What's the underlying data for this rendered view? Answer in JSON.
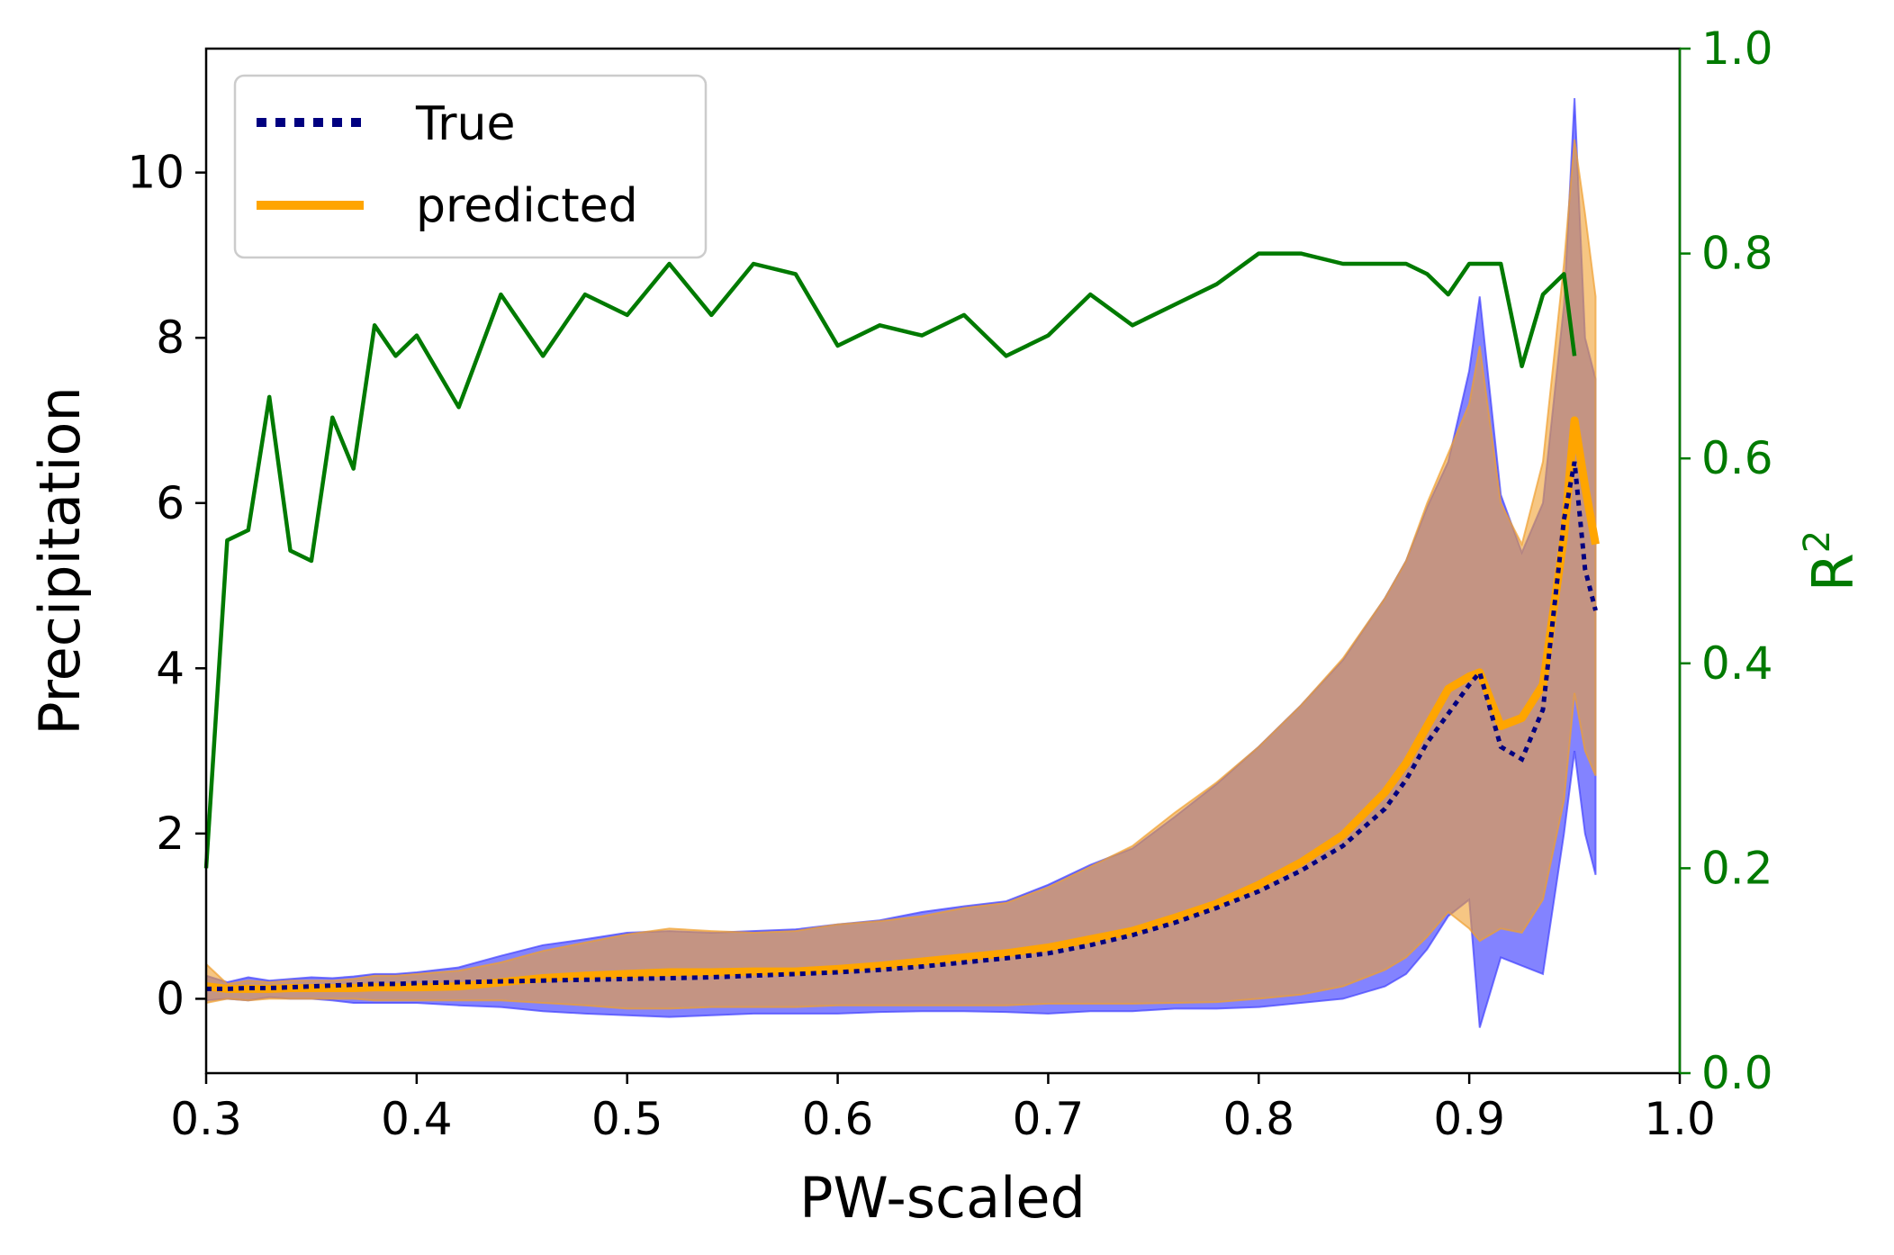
{
  "chart_data": {
    "type": "line",
    "xlabel": "PW-scaled",
    "ylabel": "Precipitation",
    "y2label": "R",
    "y2label_sup": "2",
    "xlim": [
      0.3,
      1.0
    ],
    "ylim": [
      -0.9,
      11.5
    ],
    "y2lim": [
      0.0,
      1.0
    ],
    "xticks": [
      "0.3",
      "0.4",
      "0.5",
      "0.6",
      "0.7",
      "0.8",
      "0.9",
      "1.0"
    ],
    "yticks": [
      "0",
      "2",
      "4",
      "6",
      "8",
      "10"
    ],
    "y2ticks": [
      "0.0",
      "0.2",
      "0.4",
      "0.6",
      "0.8",
      "1.0"
    ],
    "legend_position": "top-left",
    "colors": {
      "true": "#000080",
      "predicted": "#ffa500",
      "true_band": "#4040ff",
      "predicted_band": "#f0a030",
      "r2": "#007a00"
    },
    "series": [
      {
        "name": "True",
        "style": "dotted",
        "x": [
          0.3,
          0.31,
          0.32,
          0.33,
          0.34,
          0.35,
          0.36,
          0.37,
          0.38,
          0.39,
          0.4,
          0.42,
          0.44,
          0.46,
          0.48,
          0.5,
          0.52,
          0.54,
          0.56,
          0.58,
          0.6,
          0.62,
          0.64,
          0.66,
          0.68,
          0.7,
          0.72,
          0.74,
          0.76,
          0.78,
          0.8,
          0.82,
          0.84,
          0.86,
          0.87,
          0.88,
          0.89,
          0.9,
          0.905,
          0.915,
          0.925,
          0.935,
          0.945,
          0.95,
          0.955,
          0.96
        ],
        "y": [
          0.12,
          0.12,
          0.13,
          0.13,
          0.14,
          0.15,
          0.16,
          0.17,
          0.18,
          0.18,
          0.19,
          0.2,
          0.21,
          0.22,
          0.23,
          0.24,
          0.25,
          0.26,
          0.28,
          0.3,
          0.32,
          0.35,
          0.39,
          0.44,
          0.49,
          0.55,
          0.65,
          0.77,
          0.92,
          1.1,
          1.3,
          1.55,
          1.85,
          2.3,
          2.65,
          3.1,
          3.45,
          3.8,
          3.95,
          3.05,
          2.9,
          3.5,
          5.8,
          6.5,
          5.2,
          4.7
        ]
      },
      {
        "name": "predicted",
        "style": "solid",
        "x": [
          0.3,
          0.31,
          0.32,
          0.33,
          0.34,
          0.35,
          0.36,
          0.37,
          0.38,
          0.39,
          0.4,
          0.42,
          0.44,
          0.46,
          0.48,
          0.5,
          0.52,
          0.54,
          0.56,
          0.58,
          0.6,
          0.62,
          0.64,
          0.66,
          0.68,
          0.7,
          0.72,
          0.74,
          0.76,
          0.78,
          0.8,
          0.82,
          0.84,
          0.86,
          0.87,
          0.88,
          0.89,
          0.9,
          0.905,
          0.915,
          0.925,
          0.935,
          0.945,
          0.95,
          0.955,
          0.96
        ],
        "y": [
          0.15,
          0.12,
          0.12,
          0.12,
          0.13,
          0.13,
          0.13,
          0.13,
          0.14,
          0.14,
          0.14,
          0.15,
          0.2,
          0.25,
          0.28,
          0.3,
          0.32,
          0.32,
          0.33,
          0.33,
          0.36,
          0.4,
          0.45,
          0.5,
          0.55,
          0.62,
          0.72,
          0.82,
          0.98,
          1.15,
          1.38,
          1.65,
          1.98,
          2.5,
          2.85,
          3.3,
          3.75,
          3.9,
          3.95,
          3.3,
          3.4,
          3.8,
          5.6,
          7.0,
          6.2,
          5.5
        ]
      },
      {
        "name": "R2",
        "axis": "right",
        "x": [
          0.3,
          0.31,
          0.32,
          0.33,
          0.34,
          0.35,
          0.36,
          0.37,
          0.38,
          0.39,
          0.4,
          0.42,
          0.44,
          0.46,
          0.48,
          0.5,
          0.52,
          0.54,
          0.56,
          0.58,
          0.6,
          0.62,
          0.64,
          0.66,
          0.68,
          0.7,
          0.72,
          0.74,
          0.76,
          0.78,
          0.8,
          0.82,
          0.84,
          0.86,
          0.87,
          0.88,
          0.89,
          0.9,
          0.905,
          0.915,
          0.925,
          0.935,
          0.945,
          0.95
        ],
        "y": [
          0.2,
          0.52,
          0.53,
          0.66,
          0.51,
          0.5,
          0.64,
          0.59,
          0.73,
          0.7,
          0.72,
          0.65,
          0.76,
          0.7,
          0.76,
          0.74,
          0.79,
          0.74,
          0.79,
          0.78,
          0.71,
          0.73,
          0.72,
          0.74,
          0.7,
          0.72,
          0.76,
          0.73,
          0.75,
          0.77,
          0.8,
          0.8,
          0.79,
          0.79,
          0.79,
          0.78,
          0.76,
          0.79,
          0.79,
          0.79,
          0.69,
          0.76,
          0.78,
          0.7
        ]
      }
    ],
    "bands": [
      {
        "for": "True",
        "x": [
          0.3,
          0.31,
          0.32,
          0.33,
          0.34,
          0.35,
          0.36,
          0.37,
          0.38,
          0.39,
          0.4,
          0.42,
          0.44,
          0.46,
          0.48,
          0.5,
          0.52,
          0.54,
          0.56,
          0.58,
          0.6,
          0.62,
          0.64,
          0.66,
          0.68,
          0.7,
          0.72,
          0.74,
          0.76,
          0.78,
          0.8,
          0.82,
          0.84,
          0.86,
          0.87,
          0.88,
          0.89,
          0.9,
          0.905,
          0.915,
          0.925,
          0.935,
          0.945,
          0.95,
          0.955,
          0.96
        ],
        "upper": [
          0.28,
          0.2,
          0.26,
          0.22,
          0.24,
          0.26,
          0.25,
          0.27,
          0.3,
          0.3,
          0.32,
          0.38,
          0.52,
          0.65,
          0.72,
          0.8,
          0.82,
          0.8,
          0.82,
          0.84,
          0.9,
          0.95,
          1.05,
          1.12,
          1.18,
          1.38,
          1.62,
          1.82,
          2.2,
          2.6,
          3.05,
          3.55,
          4.1,
          4.85,
          5.3,
          5.95,
          6.5,
          7.6,
          8.5,
          6.1,
          5.4,
          6.0,
          8.4,
          10.9,
          8.0,
          7.5
        ],
        "lower": [
          -0.02,
          0.0,
          -0.02,
          0.02,
          0.0,
          0.0,
          -0.02,
          -0.05,
          -0.05,
          -0.05,
          -0.05,
          -0.08,
          -0.1,
          -0.15,
          -0.18,
          -0.2,
          -0.22,
          -0.2,
          -0.18,
          -0.18,
          -0.18,
          -0.16,
          -0.15,
          -0.15,
          -0.16,
          -0.18,
          -0.15,
          -0.15,
          -0.12,
          -0.12,
          -0.1,
          -0.05,
          0.0,
          0.15,
          0.3,
          0.6,
          1.0,
          1.2,
          -0.35,
          0.5,
          0.4,
          0.3,
          2.0,
          3.0,
          2.0,
          1.5
        ]
      },
      {
        "for": "predicted",
        "x": [
          0.3,
          0.31,
          0.32,
          0.33,
          0.34,
          0.35,
          0.36,
          0.37,
          0.38,
          0.39,
          0.4,
          0.42,
          0.44,
          0.46,
          0.48,
          0.5,
          0.52,
          0.54,
          0.56,
          0.58,
          0.6,
          0.62,
          0.64,
          0.66,
          0.68,
          0.7,
          0.72,
          0.74,
          0.76,
          0.78,
          0.8,
          0.82,
          0.84,
          0.86,
          0.87,
          0.88,
          0.89,
          0.9,
          0.905,
          0.915,
          0.925,
          0.935,
          0.945,
          0.95,
          0.955,
          0.96
        ],
        "upper": [
          0.42,
          0.18,
          0.22,
          0.2,
          0.22,
          0.22,
          0.22,
          0.24,
          0.28,
          0.28,
          0.3,
          0.34,
          0.44,
          0.58,
          0.68,
          0.78,
          0.85,
          0.82,
          0.8,
          0.82,
          0.9,
          0.94,
          1.0,
          1.1,
          1.16,
          1.35,
          1.6,
          1.85,
          2.25,
          2.62,
          3.05,
          3.55,
          4.12,
          4.85,
          5.3,
          6.0,
          6.6,
          7.2,
          7.9,
          6.0,
          5.5,
          6.5,
          8.9,
          10.4,
          9.5,
          8.5
        ],
        "lower": [
          -0.05,
          0.0,
          -0.02,
          0.0,
          0.0,
          0.0,
          0.0,
          0.0,
          -0.02,
          -0.02,
          -0.02,
          -0.02,
          -0.02,
          -0.05,
          -0.08,
          -0.12,
          -0.12,
          -0.1,
          -0.1,
          -0.1,
          -0.08,
          -0.08,
          -0.08,
          -0.08,
          -0.08,
          -0.06,
          -0.06,
          -0.06,
          -0.05,
          -0.04,
          0.0,
          0.05,
          0.15,
          0.35,
          0.5,
          0.75,
          1.05,
          0.85,
          0.7,
          0.85,
          0.8,
          1.2,
          2.4,
          3.7,
          3.0,
          2.7
        ]
      }
    ]
  }
}
